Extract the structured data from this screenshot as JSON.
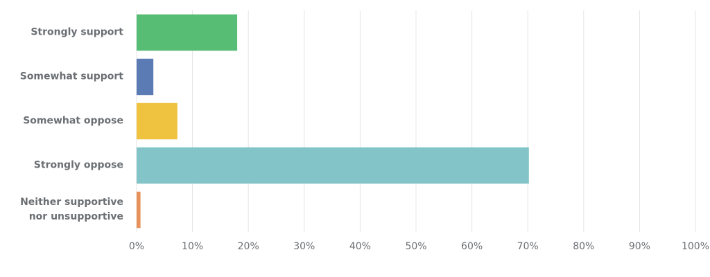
{
  "chart_data": {
    "type": "bar",
    "orientation": "horizontal",
    "categories": [
      "Strongly support",
      "Somewhat support",
      "Somewhat oppose",
      "Strongly oppose",
      "Neither supportive nor unsupportive"
    ],
    "values": [
      18,
      3,
      7.3,
      70.2,
      0.7
    ],
    "colors": [
      "#57bd74",
      "#5b7bb5",
      "#efc23f",
      "#82c4c7",
      "#e8925b"
    ],
    "xlim": [
      0,
      100
    ],
    "xticks": [
      {
        "value": 0,
        "label": "0%"
      },
      {
        "value": 10,
        "label": "10%"
      },
      {
        "value": 20,
        "label": "20%"
      },
      {
        "value": 30,
        "label": "30%"
      },
      {
        "value": 40,
        "label": "40%"
      },
      {
        "value": 50,
        "label": "50%"
      },
      {
        "value": 60,
        "label": "60%"
      },
      {
        "value": 70,
        "label": "70%"
      },
      {
        "value": 80,
        "label": "80%"
      },
      {
        "value": 90,
        "label": "90%"
      },
      {
        "value": 100,
        "label": "100%"
      }
    ],
    "grid": true
  }
}
